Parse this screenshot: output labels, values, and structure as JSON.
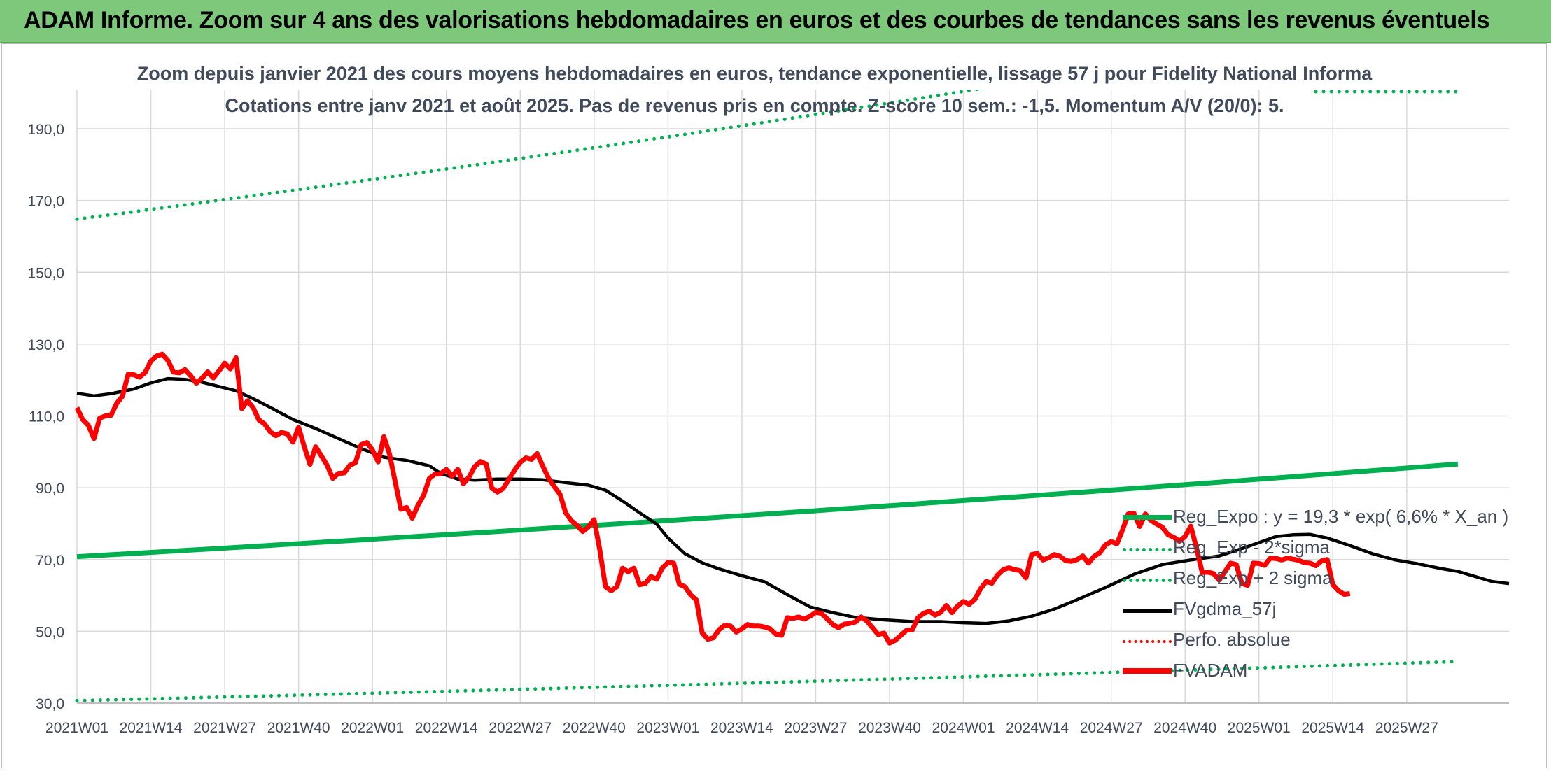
{
  "banner": {
    "title": "ADAM Informe. Zoom sur 4 ans des valorisations hebdomadaires en euros et des courbes de tendances sans les revenus éventuels"
  },
  "chart_data": {
    "type": "line",
    "title": "Zoom depuis janvier 2021 des cours moyens hebdomadaires en euros, tendance exponentielle, lissage 57 j pour Fidelity National Informa",
    "subtitle": "Cotations entre janv 2021 et août 2025. Pas de revenus pris en compte. Z-score 10 sem.: -1,5. Momentum A/V (20/0): 5.",
    "xlabel": "",
    "ylabel": "",
    "ylim": [
      30,
      190
    ],
    "y_ticks": [
      "30,0",
      "50,0",
      "70,0",
      "90,0",
      "110,0",
      "130,0",
      "150,0",
      "170,0",
      "190,0"
    ],
    "x_ticks": [
      "2021W01",
      "2021W14",
      "2021W27",
      "2021W40",
      "2022W01",
      "2022W14",
      "2022W27",
      "2022W40",
      "2023W01",
      "2023W14",
      "2023W27",
      "2023W40",
      "2024W01",
      "2024W14",
      "2024W27",
      "2024W40",
      "2025W01",
      "2025W14",
      "2025W27"
    ],
    "grid": true,
    "legend_position": "right",
    "series": [
      {
        "name": "Reg_Expo : y = 19,3 * exp( 6,6% *  X_an )",
        "color": "#00b050",
        "style": "solid-thick",
        "points": [
          [
            0,
            70.8
          ],
          [
            243,
            96.6
          ]
        ]
      },
      {
        "name": "Reg_Exp - 2*sigma",
        "color": "#00b050",
        "style": "dotted",
        "points": [
          [
            0,
            30.7
          ],
          [
            243,
            41.6
          ]
        ]
      },
      {
        "name": "Reg_Exp + 2 sigma",
        "color": "#00b050",
        "style": "dotted",
        "points": [
          [
            0,
            164.8
          ],
          [
            243,
            223.5
          ]
        ]
      },
      {
        "name": "FVgdma_57j",
        "color": "#000000",
        "style": "solid",
        "points": [
          [
            0,
            116.3
          ],
          [
            3,
            115.6
          ],
          [
            6,
            116.2
          ],
          [
            10,
            117.5
          ],
          [
            13,
            119.2
          ],
          [
            16,
            120.4
          ],
          [
            19,
            120.2
          ],
          [
            22,
            119.4
          ],
          [
            25,
            118.2
          ],
          [
            28,
            117.0
          ],
          [
            31,
            114.8
          ],
          [
            34,
            112.4
          ],
          [
            38,
            109.0
          ],
          [
            42,
            106.5
          ],
          [
            46,
            103.7
          ],
          [
            50,
            100.9
          ],
          [
            54,
            98.5
          ],
          [
            58,
            97.6
          ],
          [
            62,
            96.1
          ],
          [
            64,
            94.0
          ],
          [
            67,
            92.4
          ],
          [
            70,
            92.1
          ],
          [
            74,
            92.4
          ],
          [
            78,
            92.4
          ],
          [
            82,
            92.2
          ],
          [
            86,
            91.4
          ],
          [
            90,
            90.7
          ],
          [
            93,
            89.3
          ],
          [
            96,
            86.3
          ],
          [
            99,
            83.0
          ],
          [
            102,
            79.9
          ],
          [
            104,
            76.0
          ],
          [
            107,
            71.6
          ],
          [
            110,
            69.1
          ],
          [
            113,
            67.4
          ],
          [
            117,
            65.5
          ],
          [
            121,
            63.8
          ],
          [
            125,
            60.2
          ],
          [
            129,
            56.8
          ],
          [
            133,
            55.2
          ],
          [
            137,
            53.9
          ],
          [
            142,
            53.2
          ],
          [
            147,
            52.7
          ],
          [
            152,
            52.7
          ],
          [
            156,
            52.4
          ],
          [
            160,
            52.2
          ],
          [
            164,
            52.9
          ],
          [
            168,
            54.2
          ],
          [
            172,
            56.2
          ],
          [
            176,
            58.8
          ],
          [
            181,
            62.2
          ],
          [
            186,
            65.9
          ],
          [
            191,
            68.6
          ],
          [
            196,
            69.9
          ],
          [
            201,
            71.0
          ],
          [
            206,
            73.6
          ],
          [
            211,
            76.4
          ],
          [
            214,
            76.9
          ],
          [
            217,
            77.0
          ],
          [
            220,
            76.0
          ],
          [
            224,
            73.9
          ],
          [
            228,
            71.6
          ],
          [
            232,
            69.9
          ],
          [
            236,
            68.8
          ],
          [
            240,
            67.5
          ],
          [
            243,
            66.7
          ],
          [
            246,
            65.3
          ],
          [
            249,
            63.9
          ],
          [
            252,
            63.3
          ]
        ]
      },
      {
        "name": "Perfo. absolue",
        "color": "#ff0000",
        "style": "dotted",
        "points": []
      },
      {
        "name": "FVADAM",
        "color": "#ff0000",
        "style": "solid-thick",
        "points": [
          [
            0,
            112.3
          ],
          [
            1,
            109.0
          ],
          [
            2,
            107.4
          ],
          [
            3,
            103.7
          ],
          [
            4,
            109.4
          ],
          [
            5,
            110.0
          ],
          [
            6,
            110.2
          ],
          [
            7,
            113.5
          ],
          [
            8,
            115.5
          ],
          [
            9,
            121.6
          ],
          [
            10,
            121.5
          ],
          [
            11,
            120.8
          ],
          [
            12,
            122.1
          ],
          [
            13,
            125.3
          ],
          [
            14,
            126.7
          ],
          [
            15,
            127.2
          ],
          [
            16,
            125.5
          ],
          [
            17,
            122.2
          ],
          [
            18,
            122.0
          ],
          [
            19,
            122.9
          ],
          [
            20,
            121.2
          ],
          [
            21,
            119.1
          ],
          [
            22,
            120.5
          ],
          [
            23,
            122.3
          ],
          [
            24,
            120.6
          ],
          [
            25,
            122.6
          ],
          [
            26,
            124.7
          ],
          [
            27,
            123.1
          ],
          [
            28,
            126.2
          ],
          [
            29,
            112.0
          ],
          [
            30,
            114.2
          ],
          [
            31,
            112.3
          ],
          [
            32,
            108.9
          ],
          [
            33,
            107.8
          ],
          [
            34,
            105.6
          ],
          [
            35,
            104.5
          ],
          [
            36,
            105.4
          ],
          [
            37,
            105.0
          ],
          [
            38,
            102.7
          ],
          [
            39,
            106.8
          ],
          [
            40,
            101.4
          ],
          [
            41,
            96.5
          ],
          [
            42,
            101.4
          ],
          [
            43,
            98.9
          ],
          [
            44,
            96.3
          ],
          [
            45,
            92.6
          ],
          [
            46,
            94.0
          ],
          [
            47,
            94.1
          ],
          [
            48,
            96.2
          ],
          [
            49,
            97.0
          ],
          [
            50,
            102.0
          ],
          [
            51,
            102.6
          ],
          [
            52,
            100.5
          ],
          [
            53,
            97.2
          ],
          [
            54,
            104.2
          ],
          [
            55,
            99.4
          ],
          [
            56,
            91.6
          ],
          [
            57,
            84.0
          ],
          [
            58,
            84.5
          ],
          [
            59,
            81.5
          ],
          [
            60,
            85.1
          ],
          [
            61,
            87.9
          ],
          [
            62,
            92.6
          ],
          [
            63,
            93.8
          ],
          [
            64,
            93.9
          ],
          [
            65,
            95.1
          ],
          [
            66,
            93.2
          ],
          [
            67,
            95.1
          ],
          [
            68,
            91.1
          ],
          [
            69,
            93.0
          ],
          [
            70,
            95.9
          ],
          [
            71,
            97.3
          ],
          [
            72,
            96.6
          ],
          [
            73,
            89.9
          ],
          [
            74,
            88.8
          ],
          [
            75,
            89.8
          ],
          [
            76,
            92.3
          ],
          [
            77,
            94.9
          ],
          [
            78,
            97.1
          ],
          [
            79,
            98.3
          ],
          [
            80,
            97.9
          ],
          [
            81,
            99.5
          ],
          [
            82,
            95.9
          ],
          [
            83,
            92.6
          ],
          [
            84,
            90.3
          ],
          [
            85,
            88.2
          ],
          [
            86,
            83.0
          ],
          [
            87,
            80.8
          ],
          [
            88,
            79.5
          ],
          [
            89,
            77.8
          ],
          [
            90,
            79.1
          ],
          [
            91,
            81.1
          ],
          [
            92,
            72.6
          ],
          [
            93,
            62.4
          ],
          [
            94,
            61.3
          ],
          [
            95,
            62.4
          ],
          [
            96,
            67.6
          ],
          [
            97,
            66.6
          ],
          [
            98,
            67.6
          ],
          [
            99,
            63.0
          ],
          [
            100,
            63.3
          ],
          [
            101,
            65.3
          ],
          [
            102,
            64.5
          ],
          [
            103,
            67.7
          ],
          [
            104,
            69.2
          ],
          [
            105,
            69.0
          ],
          [
            106,
            63.1
          ],
          [
            107,
            62.4
          ],
          [
            108,
            60.1
          ],
          [
            109,
            58.7
          ],
          [
            110,
            49.6
          ],
          [
            111,
            47.8
          ],
          [
            112,
            48.2
          ],
          [
            113,
            50.5
          ],
          [
            114,
            51.7
          ],
          [
            115,
            51.5
          ],
          [
            116,
            49.8
          ],
          [
            117,
            50.7
          ],
          [
            118,
            51.9
          ],
          [
            119,
            51.5
          ],
          [
            120,
            51.5
          ],
          [
            121,
            51.2
          ],
          [
            122,
            50.7
          ],
          [
            123,
            49.2
          ],
          [
            124,
            48.9
          ],
          [
            125,
            53.8
          ],
          [
            126,
            53.6
          ],
          [
            127,
            54.0
          ],
          [
            128,
            53.4
          ],
          [
            129,
            54.2
          ],
          [
            130,
            55.3
          ],
          [
            131,
            55.0
          ],
          [
            132,
            53.5
          ],
          [
            133,
            51.9
          ],
          [
            134,
            51.0
          ],
          [
            135,
            52.0
          ],
          [
            136,
            52.2
          ],
          [
            137,
            52.6
          ],
          [
            138,
            54.0
          ],
          [
            139,
            52.9
          ],
          [
            140,
            51.0
          ],
          [
            141,
            49.1
          ],
          [
            142,
            49.5
          ],
          [
            143,
            46.7
          ],
          [
            144,
            47.5
          ],
          [
            145,
            48.9
          ],
          [
            146,
            50.3
          ],
          [
            147,
            50.4
          ],
          [
            148,
            53.8
          ],
          [
            149,
            55.0
          ],
          [
            150,
            55.6
          ],
          [
            151,
            54.5
          ],
          [
            152,
            55.3
          ],
          [
            153,
            57.2
          ],
          [
            154,
            55.2
          ],
          [
            155,
            57.1
          ],
          [
            156,
            58.3
          ],
          [
            157,
            57.5
          ],
          [
            158,
            58.9
          ],
          [
            159,
            61.8
          ],
          [
            160,
            63.9
          ],
          [
            161,
            63.4
          ],
          [
            162,
            65.7
          ],
          [
            163,
            67.2
          ],
          [
            164,
            67.7
          ],
          [
            165,
            67.2
          ],
          [
            166,
            66.9
          ],
          [
            167,
            64.9
          ],
          [
            168,
            71.4
          ],
          [
            169,
            71.7
          ],
          [
            170,
            69.9
          ],
          [
            171,
            70.5
          ],
          [
            172,
            71.4
          ],
          [
            173,
            70.9
          ],
          [
            174,
            69.7
          ],
          [
            175,
            69.5
          ],
          [
            176,
            70.0
          ],
          [
            177,
            71.0
          ],
          [
            178,
            69.0
          ],
          [
            179,
            70.9
          ],
          [
            180,
            71.9
          ],
          [
            181,
            74.1
          ],
          [
            182,
            75.0
          ],
          [
            183,
            74.4
          ],
          [
            184,
            78.3
          ],
          [
            185,
            82.7
          ],
          [
            186,
            82.9
          ],
          [
            187,
            79.2
          ],
          [
            188,
            82.7
          ],
          [
            189,
            80.9
          ],
          [
            190,
            79.9
          ],
          [
            191,
            79.0
          ],
          [
            192,
            76.9
          ],
          [
            193,
            76.2
          ],
          [
            194,
            75.1
          ],
          [
            195,
            76.4
          ],
          [
            196,
            79.3
          ],
          [
            197,
            73.3
          ],
          [
            198,
            66.4
          ],
          [
            199,
            66.5
          ],
          [
            200,
            66.1
          ],
          [
            201,
            64.3
          ],
          [
            202,
            66.6
          ],
          [
            203,
            69.0
          ],
          [
            204,
            68.6
          ],
          [
            205,
            63.3
          ],
          [
            206,
            62.8
          ],
          [
            207,
            69.0
          ],
          [
            208,
            68.9
          ],
          [
            209,
            68.4
          ],
          [
            210,
            70.4
          ],
          [
            211,
            70.3
          ],
          [
            212,
            69.9
          ],
          [
            213,
            70.4
          ],
          [
            214,
            70.1
          ],
          [
            215,
            69.8
          ],
          [
            216,
            69.1
          ],
          [
            217,
            69.0
          ],
          [
            218,
            68.3
          ],
          [
            219,
            69.6
          ],
          [
            220,
            70.0
          ],
          [
            221,
            63.0
          ],
          [
            222,
            61.3
          ],
          [
            223,
            60.3
          ],
          [
            224,
            60.5
          ]
        ]
      }
    ]
  }
}
